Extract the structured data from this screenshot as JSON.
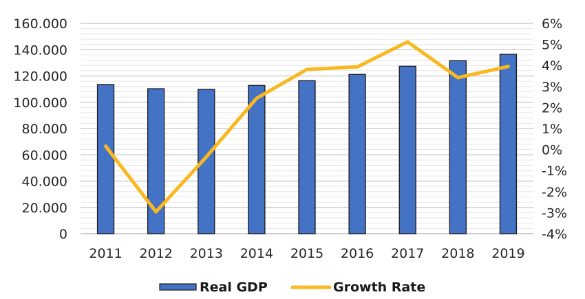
{
  "chart_data": {
    "type": "bar",
    "combo": "bar-line-dual-axis",
    "title": "",
    "xlabel": "",
    "ylabel": "",
    "y2label": "",
    "categories": [
      "2011",
      "2012",
      "2013",
      "2014",
      "2015",
      "2016",
      "2017",
      "2018",
      "2019"
    ],
    "series": [
      {
        "name": "Real GDP",
        "type": "bar",
        "axis": "left",
        "color": "#4472C4",
        "values": [
          113.5,
          110.3,
          109.8,
          112.8,
          116.4,
          121.2,
          127.4,
          131.6,
          136.5
        ]
      },
      {
        "name": "Growth Rate",
        "type": "line",
        "axis": "right",
        "color": "#F9B820",
        "values": [
          0.16,
          -2.96,
          -0.35,
          2.44,
          3.81,
          3.93,
          5.12,
          3.42,
          3.95
        ]
      }
    ],
    "ylim": [
      0,
      160
    ],
    "y_ticks": [
      0,
      20,
      40,
      60,
      80,
      100,
      120,
      140,
      160
    ],
    "y_tick_labels": [
      "0",
      "20.000",
      "40.000",
      "60.000",
      "80.000",
      "100.000",
      "120.000",
      "140.000",
      "160.000"
    ],
    "y_minor_step": 4,
    "y2lim": [
      -4,
      6
    ],
    "y2_ticks": [
      -4,
      -3,
      -2,
      -1,
      0,
      1,
      2,
      3,
      4,
      5,
      6
    ],
    "y2_tick_labels": [
      "-4%",
      "-3%",
      "-2%",
      "-1%",
      "0%",
      "1%",
      "2%",
      "3%",
      "4%",
      "5%",
      "6%"
    ],
    "grid": true,
    "legend": {
      "position": "bottom",
      "entries": [
        {
          "label": "Real GDP",
          "kind": "bar",
          "color": "#4472C4"
        },
        {
          "label": "Growth Rate",
          "kind": "line",
          "color": "#F9B820"
        }
      ]
    }
  }
}
